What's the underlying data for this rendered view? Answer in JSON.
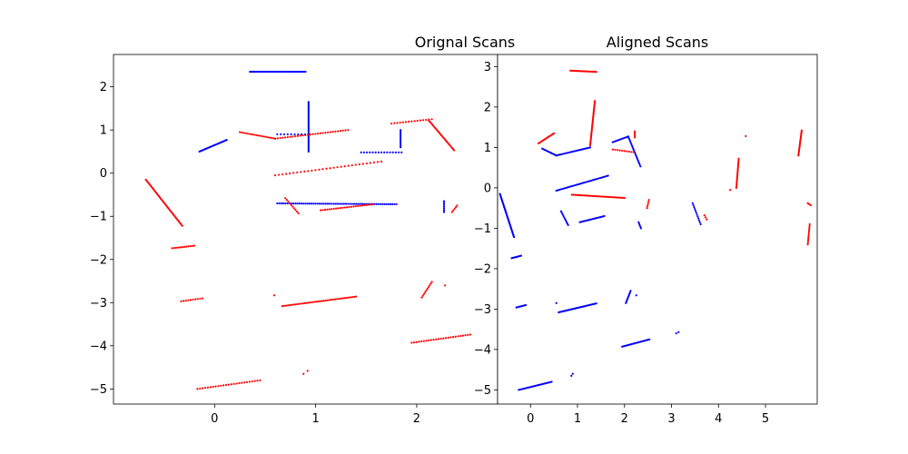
{
  "chart_data": [
    {
      "type": "scatter",
      "title": "Orignal Scans",
      "xlim": [
        -1.0,
        2.8
      ],
      "ylim": [
        -5.35,
        2.75
      ],
      "xticks": [
        0,
        1,
        2
      ],
      "yticks": [
        2,
        1,
        0,
        -1,
        -2,
        -3,
        -4,
        -5
      ],
      "colors": {
        "blue": "#0000ff",
        "red": "#ff0000"
      },
      "series": [
        {
          "color": "blue",
          "segments": [
            {
              "from": [
                0.35,
                2.35
              ],
              "to": [
                0.9,
                2.35
              ],
              "n": 40
            },
            {
              "from": [
                -0.15,
                0.5
              ],
              "to": [
                0.12,
                0.77
              ],
              "n": 25
            },
            {
              "from": [
                0.93,
                0.5
              ],
              "to": [
                0.93,
                1.65
              ],
              "n": 40
            },
            {
              "from": [
                0.62,
                0.9
              ],
              "to": [
                0.93,
                0.9
              ],
              "n": 10
            },
            {
              "from": [
                0.62,
                -0.7
              ],
              "to": [
                1.8,
                -0.72
              ],
              "n": 60
            },
            {
              "from": [
                1.45,
                0.48
              ],
              "to": [
                1.85,
                0.48
              ],
              "n": 15
            },
            {
              "from": [
                1.84,
                0.6
              ],
              "to": [
                1.84,
                1.0
              ],
              "n": 12
            },
            {
              "from": [
                2.27,
                -0.65
              ],
              "to": [
                2.27,
                -0.9
              ],
              "n": 7
            }
          ]
        },
        {
          "color": "red",
          "segments": [
            {
              "from": [
                0.25,
                0.95
              ],
              "to": [
                0.6,
                0.8
              ],
              "n": 20
            },
            {
              "from": [
                0.6,
                0.8
              ],
              "to": [
                1.32,
                1.0
              ],
              "n": 30
            },
            {
              "from": [
                1.75,
                1.15
              ],
              "to": [
                2.15,
                1.25
              ],
              "n": 15
            },
            {
              "from": [
                2.12,
                1.22
              ],
              "to": [
                2.37,
                0.53
              ],
              "n": 25
            },
            {
              "from": [
                0.6,
                -0.05
              ],
              "to": [
                1.65,
                0.27
              ],
              "n": 30
            },
            {
              "from": [
                -0.68,
                -0.15
              ],
              "to": [
                -0.32,
                -1.22
              ],
              "n": 40
            },
            {
              "from": [
                -0.42,
                -1.74
              ],
              "to": [
                -0.2,
                -1.68
              ],
              "n": 12
            },
            {
              "from": [
                0.7,
                -0.58
              ],
              "to": [
                0.83,
                -0.93
              ],
              "n": 10
            },
            {
              "from": [
                1.05,
                -0.86
              ],
              "to": [
                1.57,
                -0.72
              ],
              "n": 25
            },
            {
              "from": [
                2.35,
                -0.9
              ],
              "to": [
                2.4,
                -0.75
              ],
              "n": 5
            },
            {
              "from": [
                -0.33,
                -2.97
              ],
              "to": [
                -0.12,
                -2.9
              ],
              "n": 10
            },
            {
              "from": [
                0.67,
                -3.08
              ],
              "to": [
                1.4,
                -2.86
              ],
              "n": 40
            },
            {
              "from": [
                0.59,
                -2.83
              ],
              "to": [
                0.59,
                -2.83
              ],
              "n": 1
            },
            {
              "from": [
                2.05,
                -2.88
              ],
              "to": [
                2.15,
                -2.52
              ],
              "n": 10
            },
            {
              "from": [
                2.28,
                -2.6
              ],
              "to": [
                2.28,
                -2.6
              ],
              "n": 1
            },
            {
              "from": [
                1.95,
                -3.93
              ],
              "to": [
                2.53,
                -3.74
              ],
              "n": 25
            },
            {
              "from": [
                -0.17,
                -5.0
              ],
              "to": [
                0.45,
                -4.8
              ],
              "n": 25
            },
            {
              "from": [
                0.88,
                -4.65
              ],
              "to": [
                0.92,
                -4.58
              ],
              "n": 2
            }
          ]
        }
      ]
    },
    {
      "type": "scatter",
      "title": "Aligned Scans",
      "xlim": [
        -0.7,
        6.1
      ],
      "ylim": [
        -5.35,
        3.3
      ],
      "xticks": [
        0,
        1,
        2,
        3,
        4,
        5
      ],
      "yticks": [
        3,
        2,
        1,
        0,
        -1,
        -2,
        -3,
        -4,
        -5
      ],
      "colors": {
        "blue": "#0000ff",
        "red": "#ff0000"
      },
      "series": [
        {
          "color": "blue",
          "segments": [
            {
              "from": [
                0.25,
                0.97
              ],
              "to": [
                0.55,
                0.8
              ],
              "n": 12
            },
            {
              "from": [
                0.55,
                0.8
              ],
              "to": [
                1.27,
                1.0
              ],
              "n": 25
            },
            {
              "from": [
                1.75,
                1.13
              ],
              "to": [
                2.08,
                1.27
              ],
              "n": 12
            },
            {
              "from": [
                2.08,
                1.27
              ],
              "to": [
                2.34,
                0.53
              ],
              "n": 20
            },
            {
              "from": [
                0.55,
                -0.07
              ],
              "to": [
                1.65,
                0.3
              ],
              "n": 35
            },
            {
              "from": [
                -0.65,
                -0.15
              ],
              "to": [
                -0.35,
                -1.22
              ],
              "n": 40
            },
            {
              "from": [
                -0.4,
                -1.74
              ],
              "to": [
                -0.2,
                -1.68
              ],
              "n": 10
            },
            {
              "from": [
                0.65,
                -0.58
              ],
              "to": [
                0.8,
                -0.92
              ],
              "n": 10
            },
            {
              "from": [
                1.05,
                -0.85
              ],
              "to": [
                1.57,
                -0.7
              ],
              "n": 20
            },
            {
              "from": [
                2.3,
                -0.85
              ],
              "to": [
                2.35,
                -1.0
              ],
              "n": 5
            },
            {
              "from": [
                3.45,
                -0.38
              ],
              "to": [
                3.62,
                -0.9
              ],
              "n": 12
            },
            {
              "from": [
                -0.3,
                -2.96
              ],
              "to": [
                -0.1,
                -2.9
              ],
              "n": 8
            },
            {
              "from": [
                0.6,
                -3.08
              ],
              "to": [
                1.4,
                -2.86
              ],
              "n": 40
            },
            {
              "from": [
                0.55,
                -2.85
              ],
              "to": [
                0.55,
                -2.85
              ],
              "n": 1
            },
            {
              "from": [
                2.03,
                -2.85
              ],
              "to": [
                2.13,
                -2.55
              ],
              "n": 10
            },
            {
              "from": [
                2.25,
                -2.66
              ],
              "to": [
                2.25,
                -2.66
              ],
              "n": 1
            },
            {
              "from": [
                1.95,
                -3.93
              ],
              "to": [
                2.53,
                -3.75
              ],
              "n": 25
            },
            {
              "from": [
                3.1,
                -3.6
              ],
              "to": [
                3.15,
                -3.57
              ],
              "n": 2
            },
            {
              "from": [
                -0.25,
                -5.0
              ],
              "to": [
                0.45,
                -4.8
              ],
              "n": 25
            },
            {
              "from": [
                0.87,
                -4.65
              ],
              "to": [
                0.9,
                -4.6
              ],
              "n": 2
            }
          ]
        },
        {
          "color": "red",
          "segments": [
            {
              "from": [
                0.17,
                1.1
              ],
              "to": [
                0.5,
                1.35
              ],
              "n": 15
            },
            {
              "from": [
                0.85,
                2.9
              ],
              "to": [
                1.4,
                2.87
              ],
              "n": 20
            },
            {
              "from": [
                1.27,
                1.05
              ],
              "to": [
                1.37,
                2.15
              ],
              "n": 35
            },
            {
              "from": [
                1.75,
                0.95
              ],
              "to": [
                2.2,
                0.88
              ],
              "n": 10
            },
            {
              "from": [
                2.22,
                1.25
              ],
              "to": [
                2.22,
                1.4
              ],
              "n": 5
            },
            {
              "from": [
                0.88,
                -0.17
              ],
              "to": [
                2.0,
                -0.25
              ],
              "n": 35
            },
            {
              "from": [
                2.52,
                -0.3
              ],
              "to": [
                2.48,
                -0.5
              ],
              "n": 5
            },
            {
              "from": [
                3.7,
                -0.68
              ],
              "to": [
                3.75,
                -0.78
              ],
              "n": 3
            },
            {
              "from": [
                4.25,
                -0.05
              ],
              "to": [
                4.25,
                -0.05
              ],
              "n": 1
            },
            {
              "from": [
                4.38,
                0.0
              ],
              "to": [
                4.43,
                0.72
              ],
              "n": 20
            },
            {
              "from": [
                4.58,
                1.28
              ],
              "to": [
                4.58,
                1.28
              ],
              "n": 1
            },
            {
              "from": [
                5.7,
                0.8
              ],
              "to": [
                5.77,
                1.42
              ],
              "n": 20
            },
            {
              "from": [
                5.9,
                -0.38
              ],
              "to": [
                5.96,
                -0.43
              ],
              "n": 3
            },
            {
              "from": [
                5.94,
                -0.9
              ],
              "to": [
                5.9,
                -1.4
              ],
              "n": 12
            }
          ]
        }
      ]
    }
  ]
}
